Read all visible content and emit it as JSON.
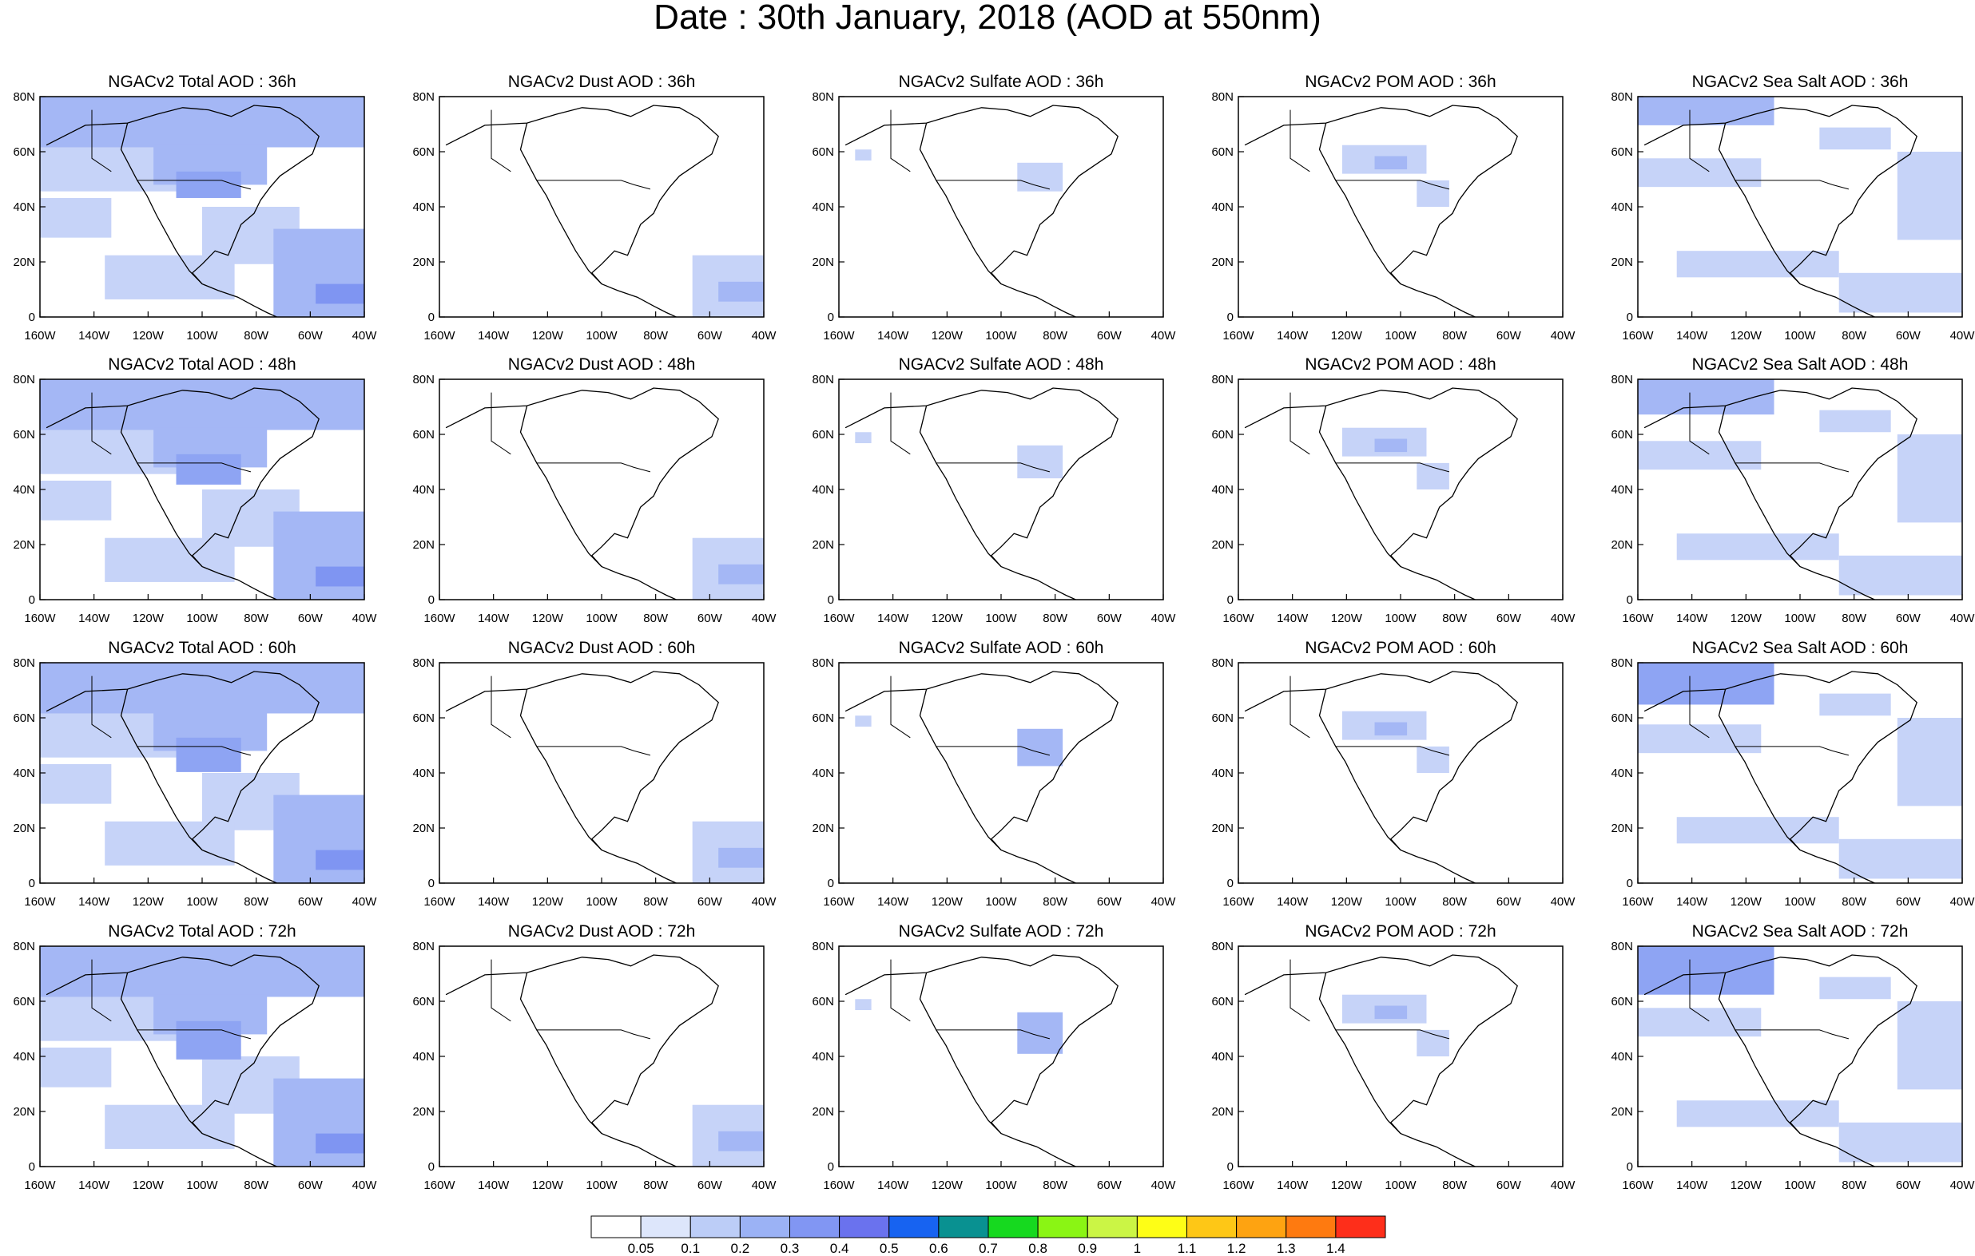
{
  "title": "Date : 30th January, 2018 (AOD at 550nm)",
  "rows": [
    {
      "panels": [
        "NGACv2 Total AOD : 36h",
        "NGACv2 Dust AOD : 36h",
        "NGACv2 Sulfate AOD : 36h",
        "NGACv2 POM AOD : 36h",
        "NGACv2 Sea Salt AOD : 36h"
      ]
    },
    {
      "panels": [
        "NGACv2 Total AOD : 48h",
        "NGACv2 Dust AOD : 48h",
        "NGACv2 Sulfate AOD : 48h",
        "NGACv2 POM AOD : 48h",
        "NGACv2 Sea Salt AOD : 48h"
      ]
    },
    {
      "panels": [
        "NGACv2 Total AOD : 60h",
        "NGACv2 Dust AOD : 60h",
        "NGACv2 Sulfate AOD : 60h",
        "NGACv2 POM AOD : 60h",
        "NGACv2 Sea Salt AOD : 60h"
      ]
    },
    {
      "panels": [
        "NGACv2 Total AOD : 72h",
        "NGACv2 Dust AOD : 72h",
        "NGACv2 Sulfate AOD : 72h",
        "NGACv2 POM AOD : 72h",
        "NGACv2 Sea Salt  AOD : 72h"
      ]
    }
  ],
  "lat_ticks": [
    "80N",
    "60N",
    "40N",
    "20N",
    "0"
  ],
  "lon_ticks": [
    "160W",
    "140W",
    "120W",
    "100W",
    "80W",
    "60W",
    "40W"
  ],
  "colorbar": {
    "labels": [
      "0.05",
      "0.1",
      "0.2",
      "0.3",
      "0.4",
      "0.5",
      "0.6",
      "0.7",
      "0.8",
      "0.9",
      "1",
      "1.1",
      "1.2",
      "1.3",
      "1.4"
    ],
    "colors": [
      "#ffffff",
      "#dde6fb",
      "#bccdf7",
      "#9bb2f5",
      "#8196f3",
      "#6a72ee",
      "#1763f1",
      "#099191",
      "#16d91f",
      "#8af514",
      "#cbf545",
      "#fefe16",
      "#fec716",
      "#fea311",
      "#fe7a10",
      "#fe2e1a"
    ]
  }
}
